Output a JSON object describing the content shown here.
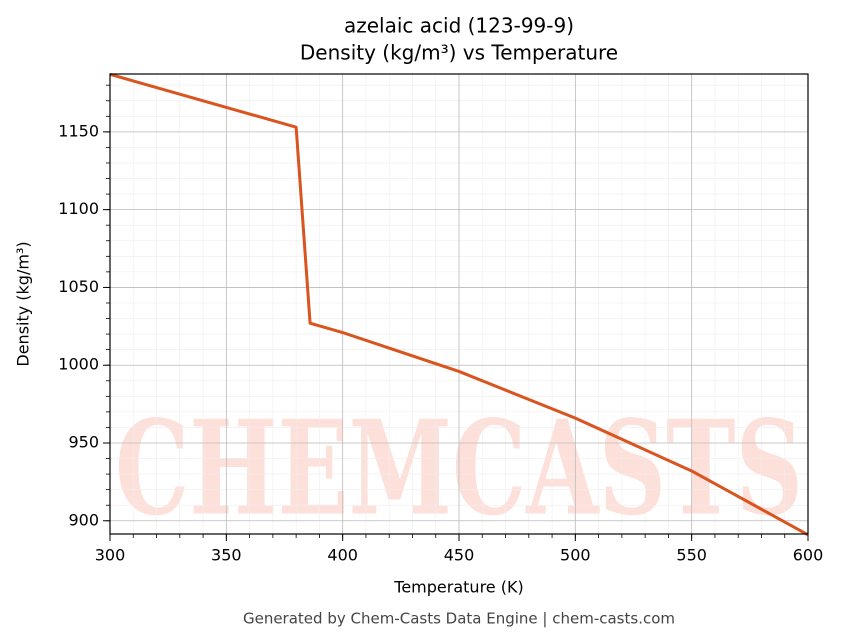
{
  "chart_data": {
    "type": "line",
    "title": "azelaic acid (123-99-9)",
    "subtitle": "Density (kg/m³) vs Temperature",
    "x_label": "Temperature (K)",
    "y_label": "Density (kg/m³)",
    "footer": "Generated by Chem-Casts Data Engine | chem-casts.com",
    "watermark": "CHEMCASTS",
    "x": [
      300,
      380,
      386,
      400,
      450,
      500,
      550,
      600
    ],
    "series": [
      {
        "name": "Density",
        "color": "#d9541e",
        "values": [
          1187,
          1153,
          1027,
          1021,
          996,
          966,
          932,
          891
        ]
      }
    ],
    "xlim": [
      300,
      600
    ],
    "ylim": [
      891.5,
      1187.2
    ],
    "xticks": [
      300,
      350,
      400,
      450,
      500,
      550,
      600
    ],
    "yticks": [
      900,
      950,
      1000,
      1050,
      1100,
      1150
    ],
    "grid": true
  }
}
